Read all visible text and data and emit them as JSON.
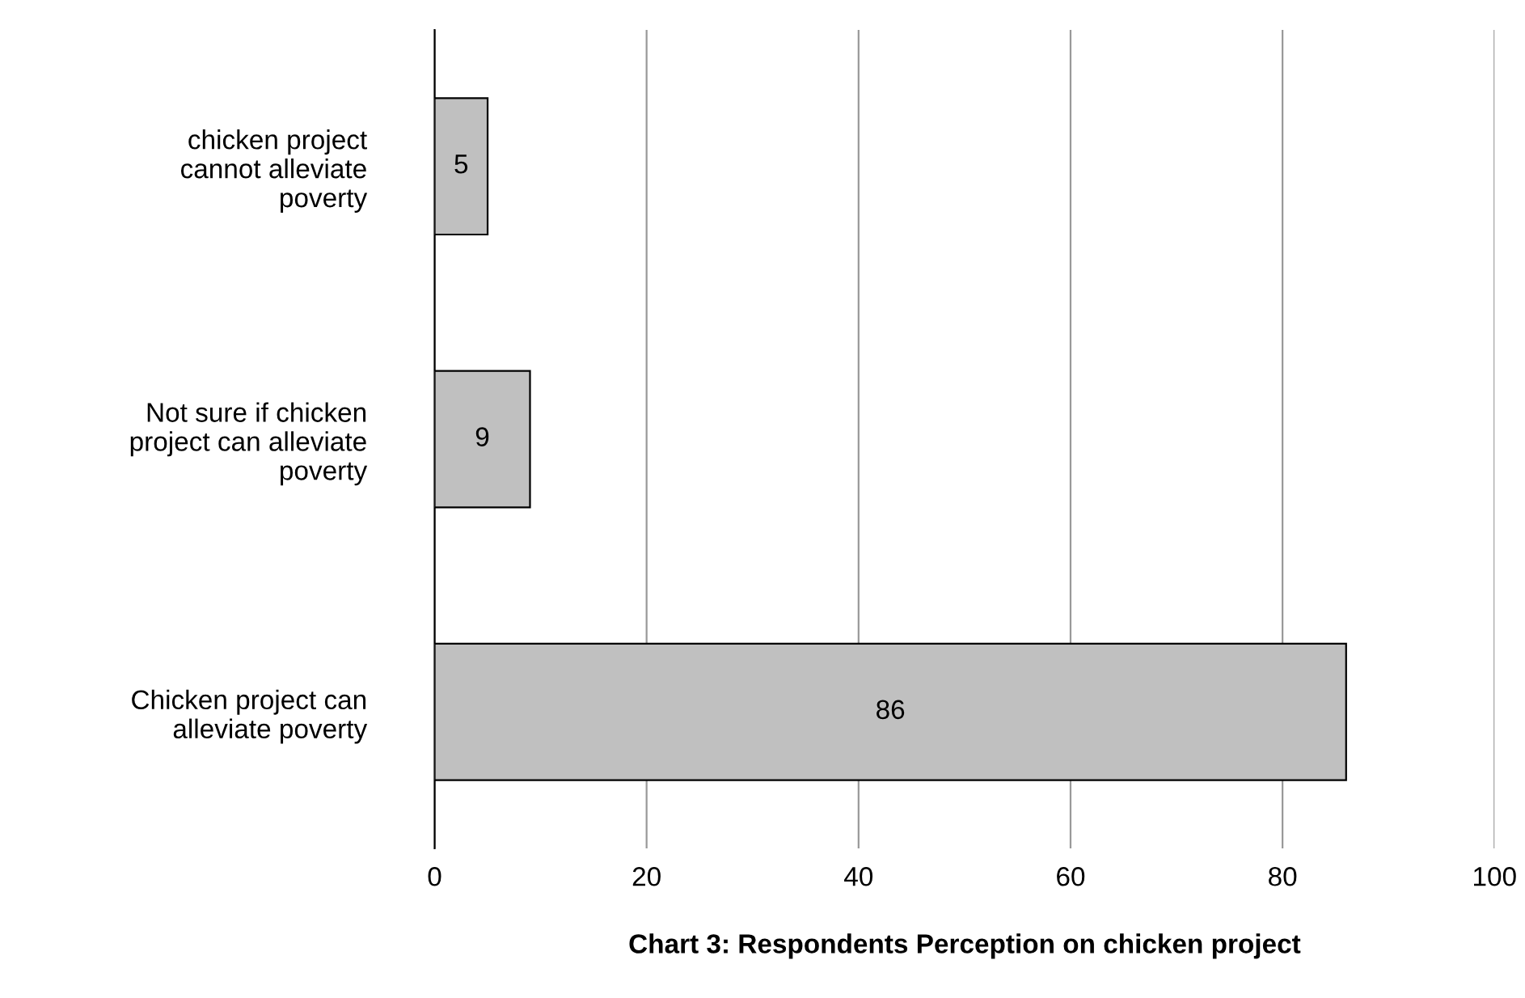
{
  "chart_data": {
    "type": "bar",
    "orientation": "horizontal",
    "title": "Chart 3: Respondents Perception on chicken project",
    "categories": [
      "chicken project\ncannot alleviate\npoverty",
      "Not sure if chicken\nproject can alleviate\npoverty",
      "Chicken project can\nalleviate poverty"
    ],
    "values": [
      5,
      9,
      86
    ],
    "color": "#c0c0c0",
    "data_labels": true,
    "xlim": [
      0,
      100
    ],
    "xticks": [
      0,
      20,
      40,
      60,
      80,
      100
    ],
    "grid": "x",
    "legend": false
  }
}
